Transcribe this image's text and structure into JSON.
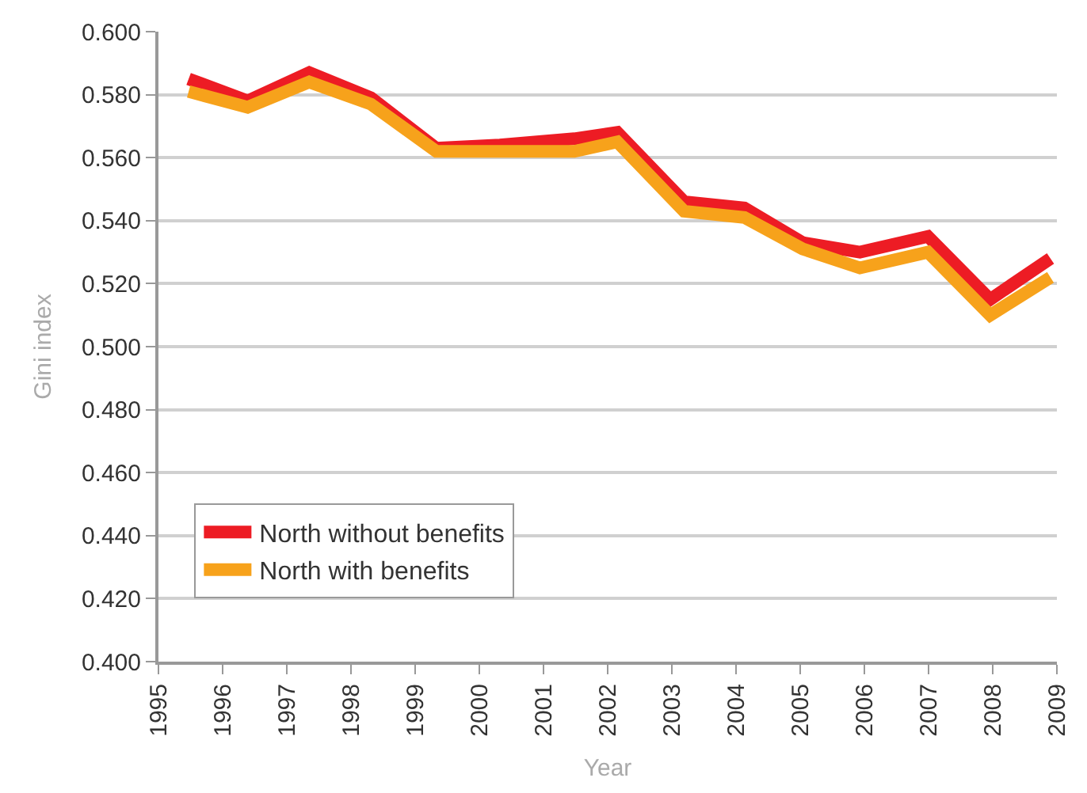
{
  "chart_data": {
    "type": "line",
    "xlabel": "Year",
    "ylabel": "Gini index",
    "x": [
      1995.47,
      1996.39,
      1997.35,
      1998.31,
      1999.33,
      2000.32,
      2001.48,
      2002.15,
      2003.19,
      2004.13,
      2005.04,
      2005.93,
      2006.99,
      2007.96,
      2008.9
    ],
    "series": [
      {
        "name": "North without benefits",
        "color": "#ed1c24",
        "values": [
          0.585,
          0.578,
          0.587,
          0.579,
          0.563,
          0.564,
          0.566,
          0.568,
          0.546,
          0.544,
          0.533,
          0.53,
          0.535,
          0.515,
          0.528
        ]
      },
      {
        "name": "North with benefits",
        "color": "#f7a21b",
        "values": [
          0.581,
          0.576,
          0.584,
          0.577,
          0.562,
          0.562,
          0.562,
          0.565,
          0.543,
          0.541,
          0.531,
          0.525,
          0.53,
          0.51,
          0.522
        ]
      }
    ],
    "xlim": [
      1995,
      2009
    ],
    "xticks": [
      1995,
      1996,
      1997,
      1998,
      1999,
      2000,
      2001,
      2002,
      2003,
      2004,
      2005,
      2006,
      2007,
      2008,
      2009
    ],
    "ylim": [
      0.4,
      0.6
    ],
    "yticks": [
      {
        "value": 0.4,
        "label": "0.400"
      },
      {
        "value": 0.42,
        "label": "0.420"
      },
      {
        "value": 0.44,
        "label": "0.440"
      },
      {
        "value": 0.46,
        "label": "0.460"
      },
      {
        "value": 0.48,
        "label": "0.480"
      },
      {
        "value": 0.5,
        "label": "0.500"
      },
      {
        "value": 0.52,
        "label": "0.520"
      },
      {
        "value": 0.54,
        "label": "0.540"
      },
      {
        "value": 0.56,
        "label": "0.560"
      },
      {
        "value": 0.58,
        "label": "0.580"
      },
      {
        "value": 0.6,
        "label": "0.600"
      }
    ],
    "grid": "y",
    "legend": "bottom left",
    "line_style": "solid",
    "marker": "none"
  }
}
